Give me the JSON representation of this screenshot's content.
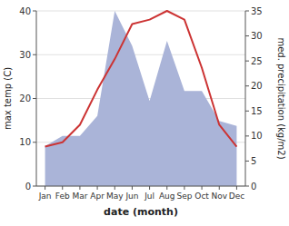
{
  "chart_data": {
    "type": "line",
    "categories": [
      "Jan",
      "Feb",
      "Mar",
      "Apr",
      "May",
      "Jun",
      "Jul",
      "Aug",
      "Sep",
      "Oct",
      "Nov",
      "Dec"
    ],
    "xlabel": "date (month)",
    "ylabel": "max temp (C)",
    "y2label": "med. precipitation (kg/m2)",
    "series": [
      {
        "type": "line",
        "color": "#cc3333",
        "values": [
          9,
          10,
          14,
          22,
          29,
          37,
          38,
          40,
          38,
          27,
          14,
          9
        ]
      },
      {
        "type": "area",
        "color": "#aab4d8",
        "axis": "y2",
        "values": [
          8,
          10,
          10,
          14,
          35,
          28,
          17,
          29,
          19,
          19,
          13,
          12
        ]
      }
    ],
    "ylim": [
      0,
      40
    ],
    "yticks": [
      0,
      10,
      20,
      30,
      40
    ],
    "y2lim": [
      0,
      35
    ],
    "y2ticks": [
      0,
      5,
      10,
      15,
      20,
      25,
      30,
      35
    ],
    "grid": true
  }
}
